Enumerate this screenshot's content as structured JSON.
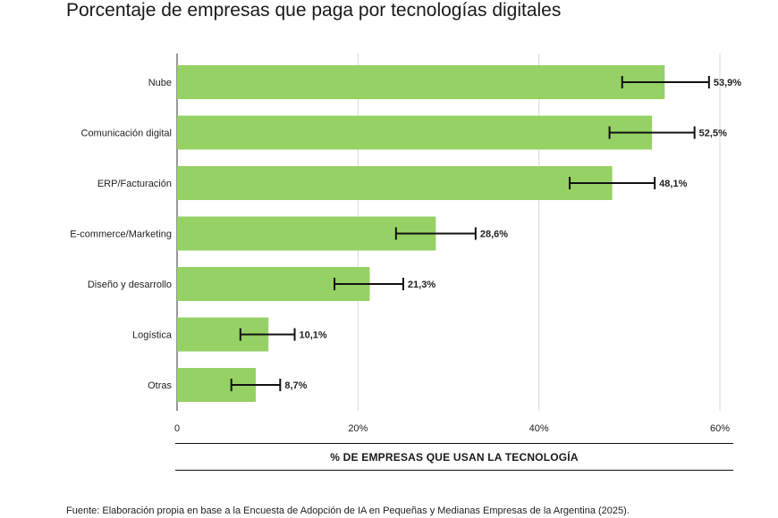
{
  "chart_data": {
    "type": "bar",
    "orientation": "horizontal",
    "title": "Porcentaje de empresas que paga por tecnologías digitales",
    "xlabel": "% DE EMPRESAS QUE USAN LA TECNOLOGÍA",
    "ylabel": "",
    "categories": [
      "Nube",
      "Comunicación digital",
      "ERP/Facturación",
      "E-commerce/Marketing",
      "Diseño y desarrollo",
      "Logística",
      "Otras"
    ],
    "values": [
      53.9,
      52.5,
      48.1,
      28.6,
      21.3,
      10.1,
      8.7
    ],
    "value_labels": [
      "53,9%",
      "52,5%",
      "48,1%",
      "28,6%",
      "21,3%",
      "10,1%",
      "8,7%"
    ],
    "error_bars": [
      [
        49.2,
        58.8
      ],
      [
        47.8,
        57.2
      ],
      [
        43.4,
        52.8
      ],
      [
        24.2,
        33.0
      ],
      [
        17.4,
        25.0
      ],
      [
        7.0,
        13.0
      ],
      [
        6.0,
        11.4
      ]
    ],
    "xlim": [
      0,
      60
    ],
    "xticks": [
      0,
      20,
      40,
      60
    ],
    "xtick_labels": [
      "0",
      "20%",
      "40%",
      "60%"
    ],
    "grid": "vertical",
    "bar_color": "#95d164",
    "source": "Fuente: Elaboración propia en base a la Encuesta de Adopción de IA en Pequeñas y Medianas Empresas de la Argentina (2025)."
  }
}
